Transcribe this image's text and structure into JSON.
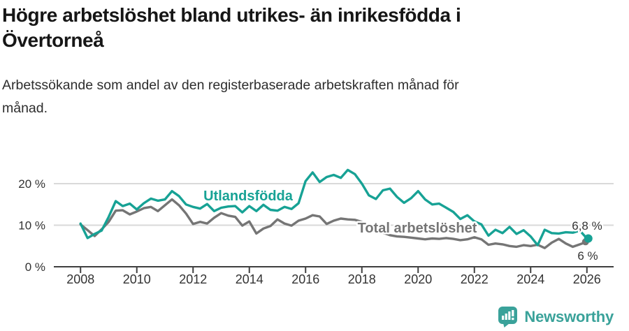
{
  "header": {
    "title_lines": [
      "Högre arbetslöshet bland utrikes- än inrikesfödda i",
      "Övertorneå"
    ],
    "subtitle_lines": [
      "Arbetssökande som andel av den registerbaserade arbetskraften månad för",
      "månad."
    ]
  },
  "chart_data": {
    "type": "line",
    "title": "Högre arbetslöshet bland utrikes- än inrikesfödda i Övertorneå",
    "subtitle": "Arbetssökande som andel av den registerbaserade arbetskraften månad för månad.",
    "unit": "%",
    "x_start": 2008.0,
    "x_step": 0.25,
    "xlim": [
      2007.05,
      2026.95
    ],
    "ylim": [
      0,
      26
    ],
    "grid": "horizontal",
    "x_ticks": [
      2008,
      2010,
      2012,
      2014,
      2016,
      2018,
      2020,
      2022,
      2024,
      2026
    ],
    "y_ticks": [
      {
        "value": 0,
        "label": "0 %"
      },
      {
        "value": 10,
        "label": "10 %"
      },
      {
        "value": 20,
        "label": "20 %"
      }
    ],
    "series": [
      {
        "name": "Total arbetslöshet",
        "color": "#757575",
        "end_label": "6 %",
        "end_value": 6.0,
        "values": [
          10.2,
          8.8,
          7.4,
          9.0,
          10.8,
          13.5,
          13.6,
          12.6,
          13.3,
          14.1,
          14.4,
          13.4,
          14.8,
          16.2,
          14.8,
          12.8,
          10.3,
          10.8,
          10.4,
          11.8,
          12.9,
          12.3,
          12.0,
          9.9,
          10.9,
          8.0,
          9.2,
          9.8,
          11.4,
          10.4,
          9.9,
          11.1,
          11.6,
          12.4,
          12.1,
          10.3,
          11.1,
          11.6,
          11.4,
          11.3,
          10.8,
          9.8,
          9.0,
          8.2,
          7.6,
          7.3,
          7.2,
          7.0,
          6.8,
          6.6,
          6.8,
          6.7,
          6.9,
          6.7,
          6.4,
          6.6,
          7.1,
          6.6,
          5.3,
          5.6,
          5.4,
          5.0,
          4.8,
          5.2,
          5.0,
          5.3,
          4.5,
          5.8,
          6.7,
          5.6,
          4.8,
          5.4,
          6.0
        ]
      },
      {
        "name": "Utlandsfödda",
        "color": "#17a295",
        "end_label": "6,8 %",
        "end_value": 6.8,
        "values": [
          10.4,
          6.9,
          7.9,
          8.7,
          12.0,
          15.8,
          14.6,
          15.2,
          13.8,
          15.3,
          16.4,
          15.9,
          16.2,
          18.2,
          17.0,
          15.0,
          14.4,
          14.0,
          15.1,
          13.4,
          14.2,
          14.5,
          14.6,
          13.1,
          14.6,
          13.4,
          14.9,
          13.7,
          13.5,
          14.4,
          13.9,
          15.3,
          20.6,
          22.7,
          20.4,
          21.6,
          22.1,
          21.4,
          23.3,
          22.3,
          20.0,
          17.2,
          16.3,
          18.4,
          18.8,
          16.8,
          15.4,
          16.5,
          18.2,
          16.2,
          15.0,
          15.2,
          14.2,
          13.2,
          11.5,
          12.4,
          10.9,
          10.2,
          7.5,
          8.9,
          8.1,
          9.6,
          7.9,
          8.8,
          7.3,
          5.2,
          8.9,
          8.1,
          8.0,
          8.3,
          8.2,
          8.7,
          6.8
        ]
      }
    ],
    "legend_position": "inline-labels"
  },
  "colors": {
    "accent_teal": "#17a295",
    "series_gray": "#757575",
    "axis": "#3f3f3f",
    "gridline": "#d9d9d9",
    "text_dark": "#333333"
  },
  "footer": {
    "brand": "Newsworthy",
    "brand_color": "#3aa29a",
    "logo_icon": "bar-chart-speech-bubble-icon"
  }
}
